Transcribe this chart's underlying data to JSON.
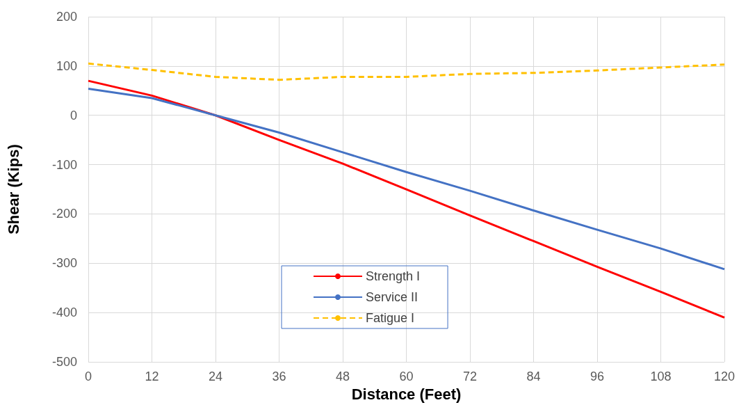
{
  "chart_data": {
    "type": "line",
    "xlabel": "Distance (Feet)",
    "ylabel": "Shear (Kips)",
    "x": [
      0,
      12,
      24,
      36,
      48,
      60,
      72,
      84,
      96,
      108,
      120
    ],
    "series": [
      {
        "name": "Strength I",
        "color": "#ff0000",
        "line_style": "solid",
        "values": [
          70,
          40,
          0,
          -50,
          -98,
          -150,
          -203,
          -255,
          -307,
          -358,
          -410
        ]
      },
      {
        "name": "Service II",
        "color": "#4472c4",
        "line_style": "solid",
        "values": [
          54,
          35,
          0,
          -35,
          -75,
          -115,
          -153,
          -193,
          -232,
          -270,
          -312
        ]
      },
      {
        "name": "Fatigue I",
        "color": "#ffc000",
        "line_style": "dashed",
        "values": [
          105,
          92,
          78,
          72,
          78,
          78,
          84,
          86,
          91,
          97,
          103
        ]
      }
    ],
    "xlim": [
      0,
      120
    ],
    "xticks": [
      0,
      12,
      24,
      36,
      48,
      60,
      72,
      84,
      96,
      108,
      120
    ],
    "ylim": [
      -500,
      200
    ],
    "yticks": [
      -500,
      -400,
      -300,
      -200,
      -100,
      0,
      100,
      200
    ],
    "grid": true,
    "legend": "bottom",
    "marker": "none"
  }
}
